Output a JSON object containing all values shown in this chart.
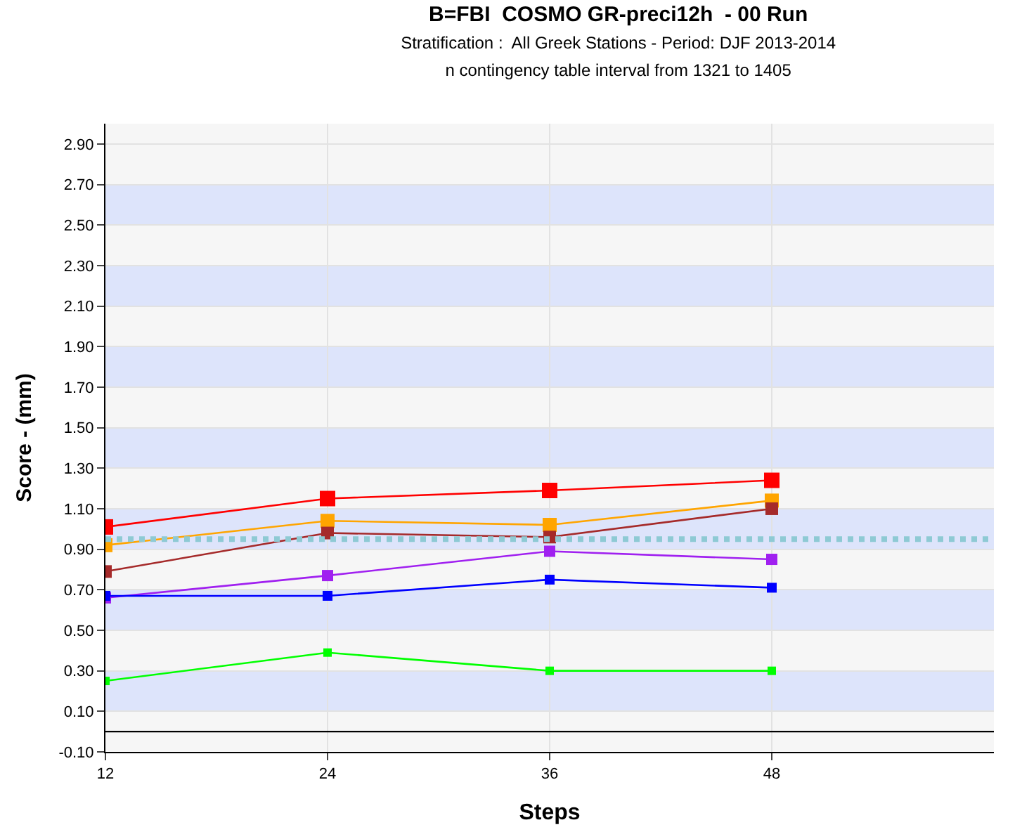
{
  "chart_data": {
    "type": "line",
    "title": "B=FBI  COSMO GR-preci12h  - 00 Run",
    "subtitle": "Stratification :  All Greek Stations - Period: DJF 2013-2014\nn contingency table interval from 1321 to 1405",
    "xlabel": "Steps",
    "ylabel": "Score - (mm)",
    "x": [
      12,
      24,
      36,
      48
    ],
    "series": [
      {
        "color": "#ff0000",
        "values": [
          1.01,
          1.15,
          1.19,
          1.24
        ]
      },
      {
        "color": "#ffa500",
        "values": [
          0.92,
          1.04,
          1.02,
          1.14
        ]
      },
      {
        "color": "#a52a2a",
        "values": [
          0.79,
          0.98,
          0.96,
          1.1
        ]
      },
      {
        "color": "#a020f0",
        "values": [
          0.66,
          0.77,
          0.89,
          0.85
        ]
      },
      {
        "color": "#0000ff",
        "values": [
          0.67,
          0.67,
          0.75,
          0.71
        ]
      },
      {
        "color": "#00ff00",
        "values": [
          0.25,
          0.39,
          0.3,
          0.3
        ]
      }
    ],
    "xlim": [
      12,
      60
    ],
    "xticks": [
      12,
      24,
      36,
      48
    ],
    "ylim": [
      -0.1,
      3.0
    ],
    "yticks": [
      {
        "value": -0.1,
        "label": "-0.10"
      },
      {
        "value": 0.1,
        "label": "0.10"
      },
      {
        "value": 0.3,
        "label": "0.30"
      },
      {
        "value": 0.5,
        "label": "0.50"
      },
      {
        "value": 0.7,
        "label": "0.70"
      },
      {
        "value": 0.9,
        "label": "0.90"
      },
      {
        "value": 1.1,
        "label": "1.10"
      },
      {
        "value": 1.3,
        "label": "1.30"
      },
      {
        "value": 1.5,
        "label": "1.50"
      },
      {
        "value": 1.7,
        "label": "1.70"
      },
      {
        "value": 1.9,
        "label": "1.90"
      },
      {
        "value": 2.1,
        "label": "2.10"
      },
      {
        "value": 2.3,
        "label": "2.30"
      },
      {
        "value": 2.5,
        "label": "2.50"
      },
      {
        "value": 2.7,
        "label": "2.70"
      },
      {
        "value": 2.9,
        "label": "2.90"
      }
    ],
    "ref_lines": [
      {
        "axis": "y",
        "value": 0.95,
        "color": "#8ecad4",
        "line_style": "dotted"
      },
      {
        "axis": "y",
        "value": 0,
        "color": "#000000",
        "line_style": "solid"
      }
    ],
    "bands": [
      {
        "axis": "y",
        "from": 0.1,
        "to": 0.3,
        "color": "#dde4fb"
      },
      {
        "axis": "y",
        "from": 0.5,
        "to": 0.7,
        "color": "#dde4fb"
      },
      {
        "axis": "y",
        "from": 0.9,
        "to": 1.1,
        "color": "#dde4fb"
      },
      {
        "axis": "y",
        "from": 1.3,
        "to": 1.5,
        "color": "#dde4fb"
      },
      {
        "axis": "y",
        "from": 1.7,
        "to": 1.9,
        "color": "#dde4fb"
      },
      {
        "axis": "y",
        "from": 2.1,
        "to": 2.3,
        "color": "#dde4fb"
      },
      {
        "axis": "y",
        "from": 2.5,
        "to": 2.7,
        "color": "#dde4fb"
      }
    ],
    "grid": true,
    "marker": "square",
    "line_style": "solid"
  }
}
